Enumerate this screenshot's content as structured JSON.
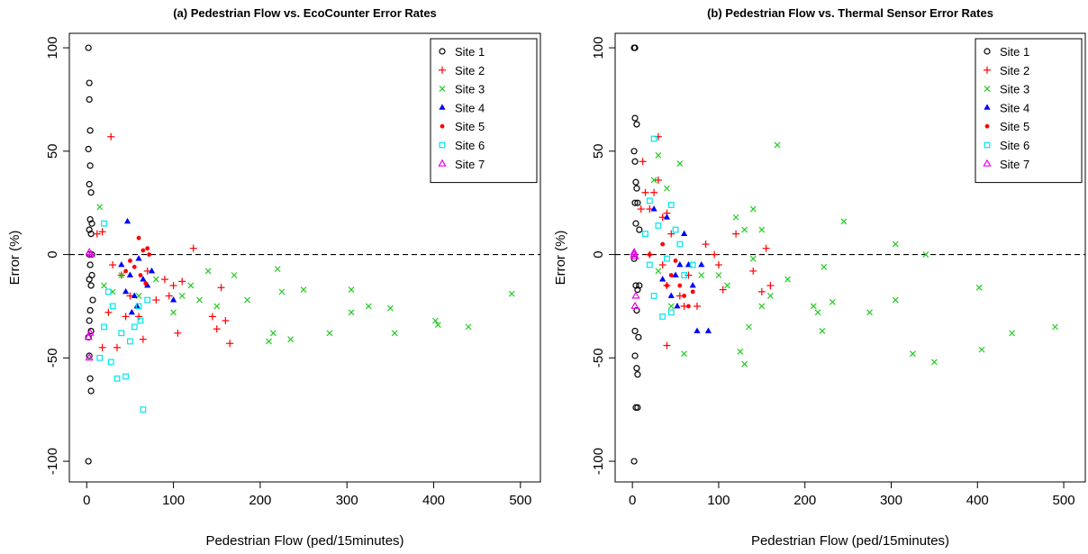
{
  "chart_data": [
    {
      "type": "scatter",
      "title": "(a) Pedestrian Flow vs. EcoCounter Error Rates",
      "x_label": "Pedestrian Flow (ped/15minutes)",
      "y_label": "Error (%)",
      "xlim": [
        -20,
        523
      ],
      "ylim": [
        -110,
        107
      ],
      "xticks": [
        0,
        100,
        200,
        300,
        400,
        500
      ],
      "yticks": [
        -100,
        -50,
        0,
        50,
        100
      ],
      "reference_line": 0,
      "legend": "top-right",
      "series": [
        {
          "name": "Site 1",
          "color": "#000000",
          "marker": "circle",
          "x": [
            2,
            3,
            3,
            4,
            2,
            4,
            3,
            5,
            4,
            6,
            3,
            5,
            4,
            6,
            3,
            5,
            7,
            4,
            3,
            5,
            2,
            3,
            4,
            5,
            2,
            3,
            6
          ],
          "y": [
            100,
            83,
            75,
            60,
            51,
            43,
            34,
            30,
            17,
            15,
            12,
            10,
            -5,
            -10,
            -12,
            -15,
            -22,
            -27,
            -32,
            -37,
            -40,
            -49,
            -60,
            -66,
            -100,
            0,
            0
          ]
        },
        {
          "name": "Site 2",
          "color": "#ff0000",
          "marker": "plus",
          "x": [
            28,
            123,
            18,
            12,
            30,
            40,
            50,
            60,
            65,
            80,
            90,
            100,
            105,
            110,
            145,
            150,
            155,
            160,
            165,
            18,
            35,
            25,
            45,
            70,
            95
          ],
          "y": [
            57,
            3,
            11,
            10,
            -5,
            -10,
            -20,
            -30,
            -41,
            -22,
            -12,
            -15,
            -38,
            -13,
            -30,
            -36,
            -16,
            -32,
            -43,
            -45,
            -45,
            -28,
            -30,
            -8,
            -20
          ]
        },
        {
          "name": "Site 3",
          "color": "#22cc22",
          "marker": "cross",
          "x": [
            15,
            20,
            30,
            40,
            60,
            80,
            100,
            110,
            130,
            140,
            150,
            170,
            185,
            210,
            215,
            220,
            225,
            235,
            250,
            280,
            305,
            305,
            325,
            350,
            355,
            402,
            405,
            440,
            490,
            120
          ],
          "y": [
            23,
            -15,
            -18,
            -10,
            -20,
            -12,
            -28,
            -20,
            -22,
            -8,
            -25,
            -10,
            -22,
            -42,
            -38,
            -7,
            -18,
            -41,
            -17,
            -38,
            -17,
            -28,
            -25,
            -26,
            -38,
            -32,
            -34,
            -35,
            -19,
            -15
          ]
        },
        {
          "name": "Site 4",
          "color": "#0000ff",
          "marker": "triangle-filled",
          "x": [
            47,
            40,
            50,
            55,
            60,
            65,
            70,
            45,
            75,
            100,
            58,
            52
          ],
          "y": [
            16,
            -5,
            -10,
            -20,
            -2,
            -12,
            -15,
            -18,
            -8,
            -22,
            -25,
            -28
          ]
        },
        {
          "name": "Site 5",
          "color": "#ff0000",
          "marker": "dot",
          "x": [
            60,
            65,
            70,
            50,
            55,
            62,
            68,
            45,
            72
          ],
          "y": [
            8,
            2,
            3,
            -3,
            -6,
            -10,
            -14,
            -8,
            0
          ]
        },
        {
          "name": "Site 6",
          "color": "#00e5ee",
          "marker": "square",
          "x": [
            20,
            20,
            15,
            28,
            35,
            45,
            65,
            40,
            50,
            55,
            62,
            30,
            25,
            60,
            70
          ],
          "y": [
            15,
            -35,
            -50,
            -52,
            -60,
            -59,
            -75,
            -38,
            -42,
            -35,
            -32,
            -25,
            -18,
            -25,
            -22
          ]
        },
        {
          "name": "Site 7",
          "color": "#ee00ee",
          "marker": "triangle",
          "x": [
            3,
            5,
            2,
            3,
            4
          ],
          "y": [
            1,
            0,
            -40,
            -50,
            -38
          ]
        }
      ]
    },
    {
      "type": "scatter",
      "title": "(b) Pedestrian Flow vs. Thermal Sensor Error Rates",
      "x_label": "Pedestrian Flow (ped/15minutes)",
      "y_label": "Error (%)",
      "xlim": [
        -20,
        525
      ],
      "ylim": [
        -110,
        107
      ],
      "xticks": [
        0,
        100,
        200,
        300,
        400,
        500
      ],
      "yticks": [
        -100,
        -50,
        0,
        50,
        100
      ],
      "reference_line": 0,
      "legend": "top-right",
      "series": [
        {
          "name": "Site 1",
          "color": "#000000",
          "marker": "circle",
          "x": [
            2,
            3,
            3,
            5,
            2,
            3,
            4,
            5,
            6,
            3,
            4,
            8,
            2,
            4,
            6,
            5,
            3,
            7,
            3,
            5,
            6,
            4,
            6,
            2,
            8
          ],
          "y": [
            100,
            100,
            66,
            63,
            50,
            45,
            35,
            32,
            25,
            25,
            15,
            12,
            -2,
            -15,
            -17,
            -27,
            -37,
            -40,
            -49,
            -55,
            -58,
            -74,
            -74,
            -100,
            -15
          ]
        },
        {
          "name": "Site 2",
          "color": "#ff0000",
          "marker": "plus",
          "x": [
            30,
            12,
            15,
            25,
            30,
            10,
            20,
            35,
            40,
            20,
            35,
            40,
            55,
            65,
            75,
            85,
            95,
            100,
            105,
            120,
            140,
            150,
            155,
            160,
            40,
            60,
            45
          ],
          "y": [
            57,
            45,
            30,
            30,
            36,
            22,
            22,
            18,
            20,
            0,
            -5,
            -15,
            -20,
            -10,
            -25,
            5,
            0,
            -5,
            -17,
            10,
            -8,
            -18,
            3,
            -15,
            -44,
            -25,
            10
          ]
        },
        {
          "name": "Site 3",
          "color": "#22cc22",
          "marker": "cross",
          "x": [
            30,
            55,
            168,
            25,
            40,
            245,
            140,
            120,
            130,
            150,
            100,
            110,
            140,
            150,
            160,
            180,
            210,
            215,
            220,
            222,
            232,
            275,
            305,
            305,
            325,
            340,
            350,
            402,
            405,
            440,
            490,
            125,
            130,
            135,
            60,
            30,
            45,
            80
          ],
          "y": [
            48,
            44,
            53,
            36,
            32,
            16,
            22,
            18,
            12,
            12,
            -10,
            -15,
            -2,
            -25,
            -20,
            -12,
            -25,
            -28,
            -37,
            -6,
            -23,
            -28,
            5,
            -22,
            -48,
            0,
            -52,
            -16,
            -46,
            -38,
            -35,
            -47,
            -53,
            -35,
            -48,
            -8,
            -25,
            -10
          ]
        },
        {
          "name": "Site 4",
          "color": "#0000ff",
          "marker": "triangle-filled",
          "x": [
            25,
            40,
            50,
            55,
            60,
            70,
            75,
            88,
            65,
            45,
            52,
            35,
            80
          ],
          "y": [
            22,
            18,
            -10,
            -5,
            10,
            -15,
            -37,
            -37,
            -5,
            -20,
            -25,
            -12,
            -5
          ]
        },
        {
          "name": "Site 5",
          "color": "#ff0000",
          "marker": "dot",
          "x": [
            20,
            35,
            45,
            55,
            60,
            65,
            50,
            70,
            40
          ],
          "y": [
            0,
            5,
            -10,
            -15,
            -20,
            -25,
            -3,
            -18,
            -15
          ]
        },
        {
          "name": "Site 6",
          "color": "#00e5ee",
          "marker": "square",
          "x": [
            25,
            20,
            45,
            30,
            50,
            15,
            20,
            25,
            35,
            45,
            60,
            70,
            40,
            55
          ],
          "y": [
            56,
            26,
            24,
            14,
            12,
            10,
            -5,
            -20,
            -30,
            -28,
            -10,
            -5,
            -2,
            5
          ]
        },
        {
          "name": "Site 7",
          "color": "#ee00ee",
          "marker": "triangle",
          "x": [
            2,
            3,
            4,
            3,
            2
          ],
          "y": [
            1,
            -1,
            -20,
            -25,
            0
          ]
        }
      ]
    }
  ]
}
